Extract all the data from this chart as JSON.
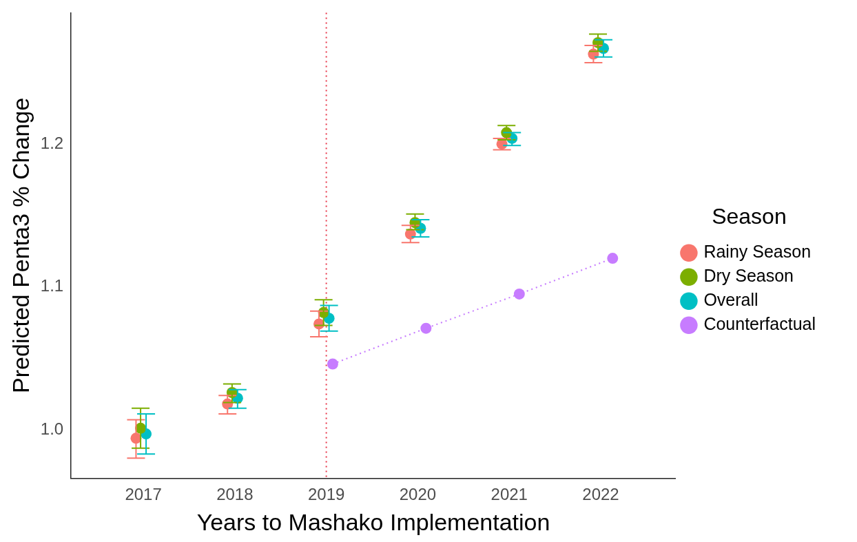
{
  "chart_data": {
    "type": "scatter",
    "xlabel": "Years to Mashako Implementation",
    "ylabel": "Predicted Penta3 % Change",
    "legend_title": "Season",
    "legend": "right",
    "grid": false,
    "marker": "circle",
    "xlim": [
      2016.21,
      2022.82
    ],
    "xticks": [
      2017,
      2018,
      2019,
      2020,
      2021,
      2022
    ],
    "ylim": [
      0.966,
      1.292
    ],
    "yticks": [
      {
        "value": 1.0,
        "label": "1.0"
      },
      {
        "value": 1.1,
        "label": "1.1"
      },
      {
        "value": 1.2,
        "label": "1.2"
      }
    ],
    "series": [
      {
        "name": "Rainy Season",
        "color": "#f8766d",
        "x": [
          2016.92,
          2017.92,
          2018.92,
          2019.92,
          2020.92,
          2021.92
        ],
        "values": [
          0.994,
          1.018,
          1.074,
          1.137,
          1.2,
          1.263
        ],
        "errors": [
          [
            0.98,
            1.007
          ],
          [
            1.011,
            1.024
          ],
          [
            1.065,
            1.083
          ],
          [
            1.131,
            1.143
          ],
          [
            1.196,
            1.204
          ],
          [
            1.257,
            1.269
          ]
        ]
      },
      {
        "name": "Dry Season",
        "color": "#7cae00",
        "x": [
          2016.97,
          2017.97,
          2018.97,
          2019.97,
          2020.97,
          2021.97
        ],
        "values": [
          1.001,
          1.026,
          1.082,
          1.145,
          1.208,
          1.271
        ],
        "errors": [
          [
            0.987,
            1.015
          ],
          [
            1.019,
            1.032
          ],
          [
            1.073,
            1.091
          ],
          [
            1.14,
            1.151
          ],
          [
            1.203,
            1.213
          ],
          [
            1.265,
            1.277
          ]
        ]
      },
      {
        "name": "Overall",
        "color": "#00bfc4",
        "x": [
          2017.03,
          2018.03,
          2019.03,
          2020.03,
          2021.03,
          2022.03
        ],
        "values": [
          0.997,
          1.022,
          1.078,
          1.141,
          1.204,
          1.267
        ],
        "errors": [
          [
            0.983,
            1.011
          ],
          [
            1.015,
            1.028
          ],
          [
            1.069,
            1.087
          ],
          [
            1.135,
            1.147
          ],
          [
            1.199,
            1.208
          ],
          [
            1.261,
            1.273
          ]
        ]
      },
      {
        "name": "Counterfactual",
        "type": "line",
        "line_style": "dotted",
        "color": "#c77cff",
        "x": [
          2019.07,
          2020.09,
          2021.11,
          2022.13
        ],
        "values": [
          1.046,
          1.071,
          1.095,
          1.12
        ]
      }
    ],
    "ref_lines": [
      {
        "axis": "x",
        "value": 2019,
        "color": "#e8364a",
        "line_style": "dotted"
      }
    ]
  }
}
